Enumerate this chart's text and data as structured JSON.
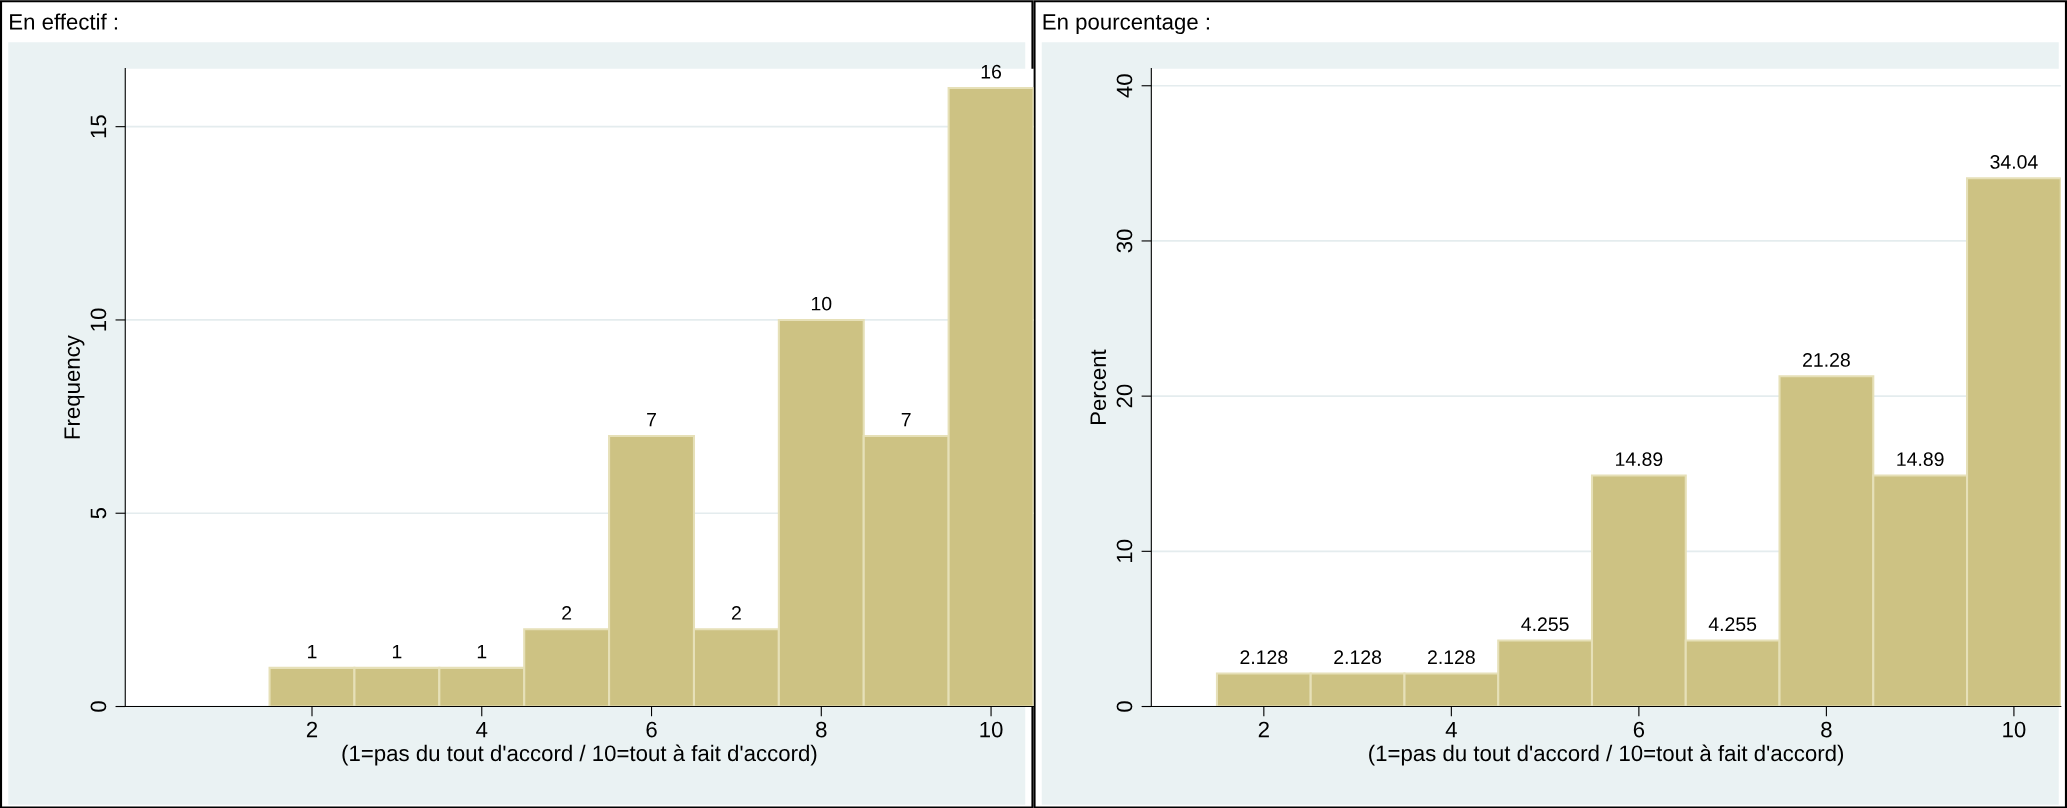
{
  "chart_data": [
    {
      "type": "histogram",
      "title": "En effectif :",
      "xlabel": "(1=pas du tout d'accord / 10=tout à fait d'accord)",
      "ylabel": "Frequency",
      "bins": [
        1.5,
        2.5,
        3.5,
        4.5,
        5.5,
        6.5,
        7.5,
        8.5,
        9.5,
        10.5
      ],
      "values": [
        1,
        1,
        1,
        2,
        7,
        2,
        10,
        7,
        16
      ],
      "color": "#cdc283",
      "xlim": [
        -0.2,
        10.5
      ],
      "ylim": [
        0,
        16.5
      ],
      "xticks": [
        2,
        4,
        6,
        8,
        10
      ],
      "yticks": [
        0,
        5,
        10,
        15
      ],
      "grid": "y",
      "data_labels": true
    },
    {
      "type": "histogram",
      "title": "En pourcentage :",
      "xlabel": "(1=pas du tout d'accord / 10=tout à fait d'accord)",
      "ylabel": "Percent",
      "bins": [
        1.5,
        2.5,
        3.5,
        4.5,
        5.5,
        6.5,
        7.5,
        8.5,
        9.5,
        10.5
      ],
      "values": [
        2.128,
        2.128,
        2.128,
        4.255,
        14.89,
        4.255,
        21.28,
        14.89,
        34.04
      ],
      "color": "#cdc283",
      "xlim": [
        0.8,
        10.5
      ],
      "ylim": [
        0,
        41.1
      ],
      "xticks": [
        2,
        4,
        6,
        8,
        10
      ],
      "yticks": [
        0,
        10,
        20,
        30,
        40
      ],
      "grid": "y",
      "data_labels": true
    }
  ]
}
